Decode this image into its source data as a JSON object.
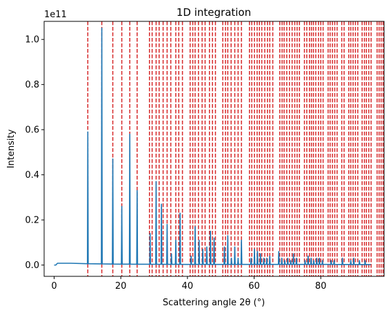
{
  "chart_data": {
    "type": "line",
    "title": "1D integration",
    "xlabel": "Scattering angle 2θ (°)",
    "ylabel": "Intensity",
    "y_offset_label": "1e11",
    "xlim": [
      -3,
      99
    ],
    "ylim": [
      -0.05,
      1.08
    ],
    "x_ticks": [
      0,
      20,
      40,
      60,
      80
    ],
    "x_tick_labels": [
      "0",
      "20",
      "40",
      "60",
      "80"
    ],
    "y_ticks": [
      0.0,
      0.2,
      0.4,
      0.6,
      0.8,
      1.0
    ],
    "y_tick_labels": [
      "0.0",
      "0.2",
      "0.4",
      "0.6",
      "0.8",
      "1.0"
    ],
    "grid": false,
    "series": [
      {
        "color": "#1f77b4",
        "baseline": [
          [
            0,
            0.0
          ],
          [
            0.5,
            0.0
          ],
          [
            1.0,
            0.008
          ],
          [
            5,
            0.008
          ],
          [
            10,
            0.006
          ],
          [
            20,
            0.004
          ],
          [
            40,
            0.003
          ],
          [
            60,
            0.003
          ],
          [
            80,
            0.003
          ],
          [
            95,
            0.002
          ]
        ],
        "peaks": [
          {
            "x": 10.1,
            "y": 0.59
          },
          {
            "x": 14.3,
            "y": 1.05
          },
          {
            "x": 17.6,
            "y": 0.47
          },
          {
            "x": 20.3,
            "y": 0.26
          },
          {
            "x": 22.7,
            "y": 0.58
          },
          {
            "x": 24.9,
            "y": 0.33
          },
          {
            "x": 28.8,
            "y": 0.14
          },
          {
            "x": 30.6,
            "y": 0.37
          },
          {
            "x": 32.2,
            "y": 0.27
          },
          {
            "x": 33.9,
            "y": 0.18
          },
          {
            "x": 35.2,
            "y": 0.05
          },
          {
            "x": 36.5,
            "y": 0.11
          },
          {
            "x": 37.8,
            "y": 0.23
          },
          {
            "x": 41.1,
            "y": 0.04
          },
          {
            "x": 42.3,
            "y": 0.17
          },
          {
            "x": 43.5,
            "y": 0.11
          },
          {
            "x": 44.6,
            "y": 0.07
          },
          {
            "x": 45.8,
            "y": 0.08
          },
          {
            "x": 46.9,
            "y": 0.15
          },
          {
            "x": 48.0,
            "y": 0.12
          },
          {
            "x": 51.1,
            "y": 0.08
          },
          {
            "x": 52.1,
            "y": 0.13
          },
          {
            "x": 53.2,
            "y": 0.03
          },
          {
            "x": 54.2,
            "y": 0.08
          },
          {
            "x": 55.2,
            "y": 0.03
          },
          {
            "x": 56.2,
            "y": 0.11
          },
          {
            "x": 59.1,
            "y": 0.03
          },
          {
            "x": 60.1,
            "y": 0.07
          },
          {
            "x": 61.0,
            "y": 0.06
          },
          {
            "x": 61.9,
            "y": 0.05
          },
          {
            "x": 62.9,
            "y": 0.03
          },
          {
            "x": 63.8,
            "y": 0.03
          },
          {
            "x": 64.7,
            "y": 0.04
          },
          {
            "x": 67.4,
            "y": 0.06
          },
          {
            "x": 68.3,
            "y": 0.03
          },
          {
            "x": 69.2,
            "y": 0.02
          },
          {
            "x": 70.1,
            "y": 0.03
          },
          {
            "x": 71.0,
            "y": 0.02
          },
          {
            "x": 71.8,
            "y": 0.05
          },
          {
            "x": 72.7,
            "y": 0.03
          },
          {
            "x": 75.3,
            "y": 0.02
          },
          {
            "x": 76.2,
            "y": 0.04
          },
          {
            "x": 77.1,
            "y": 0.03
          },
          {
            "x": 77.9,
            "y": 0.02
          },
          {
            "x": 78.8,
            "y": 0.03
          },
          {
            "x": 79.6,
            "y": 0.03
          },
          {
            "x": 80.5,
            "y": 0.02
          },
          {
            "x": 83.1,
            "y": 0.02
          },
          {
            "x": 84.0,
            "y": 0.02
          },
          {
            "x": 86.5,
            "y": 0.03
          },
          {
            "x": 89.0,
            "y": 0.02
          },
          {
            "x": 89.9,
            "y": 0.03
          },
          {
            "x": 91.6,
            "y": 0.02
          },
          {
            "x": 93.3,
            "y": 0.02
          }
        ]
      }
    ],
    "reference_lines": {
      "color": "#d62728",
      "style": "dashed",
      "x": [
        10.1,
        14.3,
        17.6,
        20.3,
        22.7,
        24.9,
        28.6,
        29.4,
        30.6,
        31.5,
        32.7,
        33.9,
        35.0,
        36.5,
        37.4,
        38.5,
        40.8,
        41.6,
        42.3,
        43.3,
        44.4,
        45.3,
        46.6,
        47.5,
        48.4,
        50.6,
        51.4,
        52.1,
        53.1,
        54.2,
        55.2,
        56.2,
        58.6,
        59.3,
        60.1,
        60.9,
        61.6,
        62.3,
        63.2,
        64.0,
        64.7,
        65.6,
        67.7,
        68.4,
        69.0,
        69.8,
        70.6,
        71.4,
        72.2,
        72.9,
        73.6,
        75.1,
        75.8,
        76.6,
        77.2,
        77.8,
        78.5,
        79.3,
        80.0,
        80.7,
        82.2,
        82.8,
        83.5,
        84.2,
        84.9,
        86.3,
        87.0,
        88.4,
        89.0,
        89.7,
        90.4,
        91.1,
        92.4,
        93.1,
        93.7,
        94.4,
        95.1,
        96.9,
        97.5,
        98.1,
        98.7
      ]
    }
  }
}
